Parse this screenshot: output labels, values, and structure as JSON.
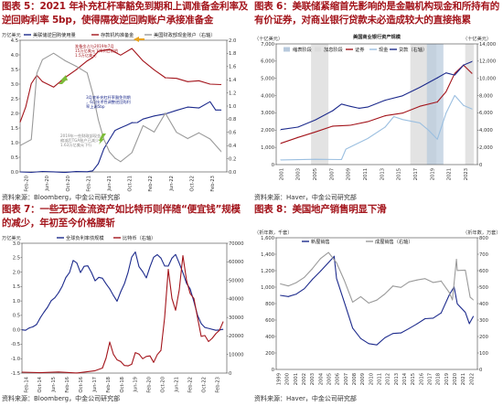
{
  "colors": {
    "title": "#a3141b",
    "red": "#a3141b",
    "navy": "#1c2a8c",
    "gray": "#9a9a9a",
    "orange": "#e8a21a",
    "green": "#7dbb3a",
    "lightblue": "#9bbfe0"
  },
  "panels": [
    {
      "title": "图表 5：2021 年补充杠杆率豁免到期和上调准备金利率及逆回购利率 5bp，使得隔夜逆回购账户承接准备金",
      "source": "资料来源：Bloomberg，中金公司研究部",
      "chart_data": {
        "type": "line",
        "left_unit": "万亿美元",
        "ylim": [
          0.0,
          4.5
        ],
        "y_ticks": [
          "0.0",
          "0.5",
          "1.0",
          "1.5",
          "2.0",
          "2.5",
          "3.0",
          "3.5",
          "4.0",
          "4.5"
        ],
        "right_ylim": [
          0.0,
          2.0
        ],
        "y2_ticks": [
          "0.0",
          "0.2",
          "0.4",
          "0.6",
          "0.8",
          "1.0",
          "1.2",
          "1.4",
          "1.6",
          "1.8",
          "2.0"
        ],
        "x_ticks": [
          "Feb-20",
          "Jun-20",
          "Oct-20",
          "Feb-21",
          "Jun-21",
          "Oct-21",
          "Feb-22",
          "Jun-22",
          "Oct-22",
          "Feb-23"
        ],
        "legend": [
          "美联储逆回购使用量",
          "存款机构准备金",
          "美国财政部现金账户（右轴）"
        ],
        "series": [
          {
            "name": "美联储逆回购使用量",
            "axis": "left",
            "color": "#1c2a8c",
            "x": [
              0,
              2,
              4,
              6,
              8,
              10,
              12,
              13,
              14,
              15,
              16,
              17,
              18,
              19,
              20,
              21,
              22,
              24,
              26,
              28,
              30,
              32,
              34,
              35,
              36
            ],
            "y": [
              0.0,
              0.0,
              0.0,
              0.0,
              0.0,
              0.0,
              0.0,
              0.05,
              0.3,
              0.8,
              1.1,
              1.4,
              1.5,
              1.6,
              1.7,
              1.7,
              1.8,
              1.9,
              2.0,
              2.1,
              2.2,
              2.2,
              2.4,
              2.1,
              2.1
            ]
          },
          {
            "name": "存款机构准备金",
            "axis": "left",
            "color": "#a3141b",
            "x": [
              0,
              1,
              2,
              3,
              4,
              6,
              8,
              10,
              12,
              13,
              14,
              16,
              18,
              20,
              22,
              24,
              26,
              28,
              30,
              32,
              34,
              36
            ],
            "y": [
              1.7,
              2.2,
              3.0,
              3.3,
              3.1,
              2.9,
              3.2,
              3.5,
              3.8,
              3.9,
              4.1,
              4.2,
              4.0,
              4.2,
              3.8,
              3.5,
              3.2,
              3.2,
              3.1,
              3.1,
              3.0,
              3.0
            ]
          },
          {
            "name": "美国财政部现金账户（右轴）",
            "axis": "right",
            "color": "#9a9a9a",
            "x": [
              0,
              2,
              3,
              4,
              6,
              8,
              10,
              12,
              13,
              14,
              15,
              16,
              17,
              18,
              20,
              22,
              24,
              26,
              28,
              30,
              32,
              34,
              36
            ],
            "y": [
              0.4,
              0.5,
              1.5,
              1.7,
              1.8,
              1.7,
              1.6,
              1.5,
              1.2,
              0.8,
              0.5,
              0.3,
              0.2,
              0.15,
              0.3,
              0.7,
              0.6,
              0.9,
              0.6,
              0.5,
              0.6,
              0.5,
              0.3
            ]
          }
        ],
        "annotations": [
          "准备金占与2019年7月15万亿美元下降到目前的1.5万亿美元",
          "3月底补充杠杆率豁免到期，6月技术性调整逆回购利率上调5bp",
          "2019年一些财政部现金缩减后TGA账户已减少，1.63万亿美元下行"
        ]
      }
    },
    {
      "title": "图表 6：美联储紧缩首先影响的是金融机构现金和所持有的有价证券，对商业银行贷款未必造成较大的直接拖累",
      "source": "资料来源：Haver，中金公司研究部",
      "chart_data": {
        "type": "line",
        "inner_title": "美国商业银行资产规模",
        "left_unit": "（十亿美元）",
        "ylim": [
          0,
          7000
        ],
        "y_ticks": [
          "0",
          "1,000",
          "2,000",
          "3,000",
          "4,000",
          "5,000",
          "6,000",
          "7,000"
        ],
        "right_unit": "（十亿美元）",
        "right_ylim": [
          0,
          14000
        ],
        "y2_ticks": [
          "0",
          "2,000",
          "4,000",
          "6,000",
          "8,000",
          "10,000",
          "12,000",
          "14,000"
        ],
        "x_ticks": [
          "2001",
          "2003",
          "2005",
          "2007",
          "2009",
          "2011",
          "2013",
          "2015",
          "2017",
          "2019",
          "2021",
          "2023"
        ],
        "legend": [
          "缩表阶段",
          "加息阶段",
          "证券",
          "现金",
          "贷款（右轴）"
        ],
        "series": [
          {
            "name": "证券",
            "axis": "left",
            "color": "#a3141b",
            "x": [
              2001,
              2003,
              2005,
              2007,
              2009,
              2011,
              2013,
              2015,
              2017,
              2019,
              2020,
              2021,
              2022,
              2023
            ],
            "y": [
              1200,
              1600,
              1900,
              2200,
              2300,
              2500,
              2800,
              3000,
              3400,
              3600,
              4200,
              5300,
              5800,
              5300
            ]
          },
          {
            "name": "现金",
            "axis": "left",
            "color": "#9bbfe0",
            "x": [
              2001,
              2005,
              2008,
              2008.5,
              2009,
              2011,
              2013,
              2014,
              2015,
              2017,
              2018,
              2019,
              2020,
              2021,
              2022,
              2023
            ],
            "y": [
              300,
              300,
              300,
              900,
              1000,
              1500,
              2200,
              2800,
              2600,
              2400,
              2000,
              1500,
              3000,
              4000,
              3400,
              3200
            ]
          },
          {
            "name": "贷款（右轴）",
            "axis": "right",
            "color": "#1c2a8c",
            "x": [
              2001,
              2003,
              2005,
              2007,
              2008,
              2009,
              2010,
              2011,
              2013,
              2015,
              2017,
              2019,
              2020,
              2021,
              2022,
              2023
            ],
            "y": [
              4000,
              4400,
              5200,
              6200,
              7000,
              6800,
              6600,
              6700,
              7400,
              8000,
              9000,
              10000,
              10600,
              10400,
              11600,
              12000
            ]
          }
        ],
        "shaded": [
          {
            "from": 2004.5,
            "to": 2006.5,
            "kind": "rate"
          },
          {
            "from": 2015.9,
            "to": 2018.9,
            "kind": "rate"
          },
          {
            "from": 2017.8,
            "to": 2019.7,
            "kind": "qt"
          },
          {
            "from": 2022.2,
            "to": 2023.2,
            "kind": "rate"
          }
        ]
      }
    },
    {
      "title": "图表 7：一些无现金流资产如比特币则伴随“便宜钱”规模的减少，年初至今价格腰斩",
      "source": "资料来源：Bloomberg，中金公司研究部",
      "chart_data": {
        "type": "line",
        "left_unit": "万亿美元",
        "ylim": [
          -1.5,
          3.0
        ],
        "y_ticks": [
          "-1.5",
          "-1.0",
          "-0.5",
          "0.0",
          "0.5",
          "1.0",
          "1.5",
          "2.0",
          "2.5",
          "3.0"
        ],
        "right_ylim": [
          0,
          70000
        ],
        "y2_ticks": [
          "0",
          "10000",
          "20000",
          "30000",
          "40000",
          "50000",
          "60000",
          "70000"
        ],
        "x_ticks": [
          "Feb-14",
          "Oct-14",
          "Jun-15",
          "Feb-16",
          "Oct-16",
          "Jun-17",
          "Feb-18",
          "Oct-18",
          "Jun-19",
          "Feb-20",
          "Oct-20",
          "Jun-21",
          "Feb-22",
          "Oct-22",
          "Feb-23"
        ],
        "legend": [
          "全球负利率债规模",
          "比特币（右轴）"
        ],
        "series": [
          {
            "name": "全球负利率债规模",
            "axis": "left",
            "color": "#1c2a8c",
            "x": [
              0,
              2,
              4,
              6,
              8,
              10,
              12,
              14,
              16,
              18,
              20,
              22,
              24,
              26,
              28,
              30,
              32,
              34,
              36,
              38,
              40,
              42,
              44,
              46,
              48,
              50,
              52,
              54,
              56,
              58,
              60,
              62,
              64,
              66,
              68,
              70,
              72,
              74,
              76,
              78,
              80,
              82,
              84,
              86,
              88,
              90,
              92,
              94,
              96,
              98,
              100,
              102,
              104,
              106,
              108,
              110
            ],
            "y": [
              0.0,
              0.0,
              0.05,
              0.1,
              0.2,
              0.4,
              0.6,
              0.8,
              1.0,
              1.1,
              1.3,
              1.5,
              1.8,
              2.0,
              2.4,
              2.3,
              2.0,
              2.2,
              2.2,
              2.0,
              1.7,
              1.8,
              1.8,
              1.6,
              1.4,
              1.2,
              1.0,
              1.3,
              1.6,
              2.0,
              2.5,
              2.7,
              2.2,
              2.0,
              1.8,
              2.2,
              2.5,
              2.6,
              2.5,
              2.2,
              2.2,
              2.5,
              2.6,
              2.3,
              2.0,
              1.6,
              1.4,
              1.0,
              0.5,
              0.2,
              0.1,
              0.05,
              0.0,
              0.0,
              0.0,
              0.0
            ]
          },
          {
            "name": "比特币（右轴）",
            "axis": "right",
            "color": "#a3141b",
            "x": [
              0,
              10,
              20,
              30,
              40,
              44,
              46,
              48,
              50,
              52,
              54,
              56,
              58,
              60,
              62,
              64,
              66,
              68,
              70,
              72,
              74,
              76,
              78,
              80,
              82,
              84,
              86,
              88,
              90,
              92,
              94,
              96,
              98,
              100,
              102,
              104,
              106,
              108,
              110
            ],
            "y": [
              500,
              400,
              300,
              300,
              1200,
              2500,
              8000,
              17000,
              10000,
              7000,
              6500,
              4000,
              3700,
              5000,
              11000,
              10000,
              8000,
              9000,
              9000,
              6000,
              10000,
              12000,
              30000,
              56000,
              40000,
              34000,
              45000,
              63000,
              50000,
              43000,
              40000,
              30000,
              20000,
              20000,
              17000,
              19000,
              21000,
              23000,
              28000
            ]
          }
        ]
      }
    },
    {
      "title": "图表 8：美国地产销售明显下滑",
      "source": "资料来源：Haver，中金公司研究部",
      "chart_data": {
        "type": "line",
        "left_unit": "（折年数，千套）",
        "ylim": [
          0,
          1600
        ],
        "y_ticks": [
          "0",
          "200",
          "400",
          "600",
          "800",
          "1,000",
          "1,200",
          "1,400",
          "1,600"
        ],
        "right_unit": "（折年数，万套）",
        "right_ylim": [
          0,
          800
        ],
        "y2_ticks": [
          "0",
          "100",
          "200",
          "300",
          "400",
          "500",
          "600",
          "700",
          "800"
        ],
        "x_ticks": [
          "1999",
          "2000",
          "2001",
          "2002",
          "2003",
          "2004",
          "2005",
          "2006",
          "2007",
          "2008",
          "2009",
          "2010",
          "2011",
          "2012",
          "2013",
          "2014",
          "2015",
          "2016",
          "2017",
          "2018",
          "2019",
          "2020",
          "2021",
          "2022"
        ],
        "legend": [
          "新屋销售",
          "成屋销售（右轴）"
        ],
        "series": [
          {
            "name": "新屋销售",
            "axis": "left",
            "color": "#1c2a8c",
            "x": [
              1999,
              2000,
              2001,
              2002,
              2003,
              2004,
              2005,
              2005.7,
              2006,
              2007,
              2008,
              2009,
              2010,
              2011,
              2012,
              2013,
              2014,
              2015,
              2016,
              2017,
              2018,
              2019,
              2020,
              2020.6,
              2021,
              2022,
              2022.5,
              2023
            ],
            "y": [
              900,
              880,
              910,
              980,
              1100,
              1200,
              1300,
              1380,
              1100,
              800,
              500,
              380,
              320,
              300,
              380,
              430,
              440,
              500,
              560,
              620,
              620,
              680,
              900,
              1000,
              800,
              700,
              550,
              650
            ]
          },
          {
            "name": "成屋销售（右轴）",
            "axis": "right",
            "color": "#9a9a9a",
            "x": [
              1999,
              2000,
              2001,
              2002,
              2003,
              2004,
              2005,
              2006,
              2007,
              2008,
              2009,
              2010,
              2011,
              2012,
              2013,
              2014,
              2015,
              2016,
              2017,
              2018,
              2019,
              2020,
              2020.4,
              2020.9,
              2021,
              2022,
              2022.6,
              2023
            ],
            "y": [
              520,
              510,
              530,
              560,
              610,
              670,
              710,
              650,
              540,
              410,
              440,
              400,
              420,
              460,
              510,
              500,
              530,
              540,
              550,
              530,
              540,
              470,
              420,
              670,
              600,
              600,
              440,
              420
            ]
          }
        ]
      }
    }
  ]
}
